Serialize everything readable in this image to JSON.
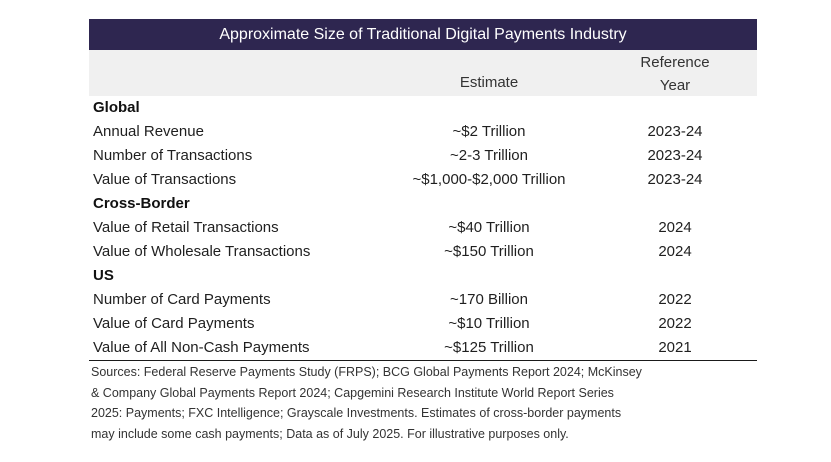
{
  "table": {
    "title": "Approximate Size of Traditional Digital Payments Industry",
    "headers": {
      "estimate": "Estimate",
      "reference_year_line1": "Reference",
      "reference_year_line2": "Year"
    },
    "sections": [
      {
        "name": "Global",
        "rows": [
          {
            "label": "Annual Revenue",
            "estimate": "~$2 Trillion",
            "year": "2023-24"
          },
          {
            "label": "Number of Transactions",
            "estimate": "~2-3 Trillion",
            "year": "2023-24"
          },
          {
            "label": "Value of Transactions",
            "estimate": "~$1,000-$2,000 Trillion",
            "year": "2023-24"
          }
        ]
      },
      {
        "name": "Cross-Border",
        "rows": [
          {
            "label": "Value of Retail Transactions",
            "estimate": "~$40 Trillion",
            "year": "2024"
          },
          {
            "label": "Value of Wholesale Transactions",
            "estimate": "~$150 Trillion",
            "year": "2024"
          }
        ]
      },
      {
        "name": "US",
        "rows": [
          {
            "label": "Number of Card Payments",
            "estimate": "~170 Billion",
            "year": "2022"
          },
          {
            "label": "Value of Card Payments",
            "estimate": "~$10 Trillion",
            "year": "2022"
          },
          {
            "label": "Value of All Non-Cash Payments",
            "estimate": "~$125 Trillion",
            "year": "2021"
          }
        ]
      }
    ],
    "notes": [
      "Sources: Federal Reserve Payments Study (FRPS); BCG Global Payments Report 2024; McKinsey",
      "& Company Global Payments Report 2024; Capgemini Research Institute World Report Series",
      "2025: Payments; FXC Intelligence; Grayscale Investments. Estimates of cross-border payments",
      "may include some cash payments; Data as of July 2025. For illustrative purposes only."
    ]
  },
  "colors": {
    "title_bg": "#2e2650",
    "header_bg": "#f0f0f0"
  }
}
